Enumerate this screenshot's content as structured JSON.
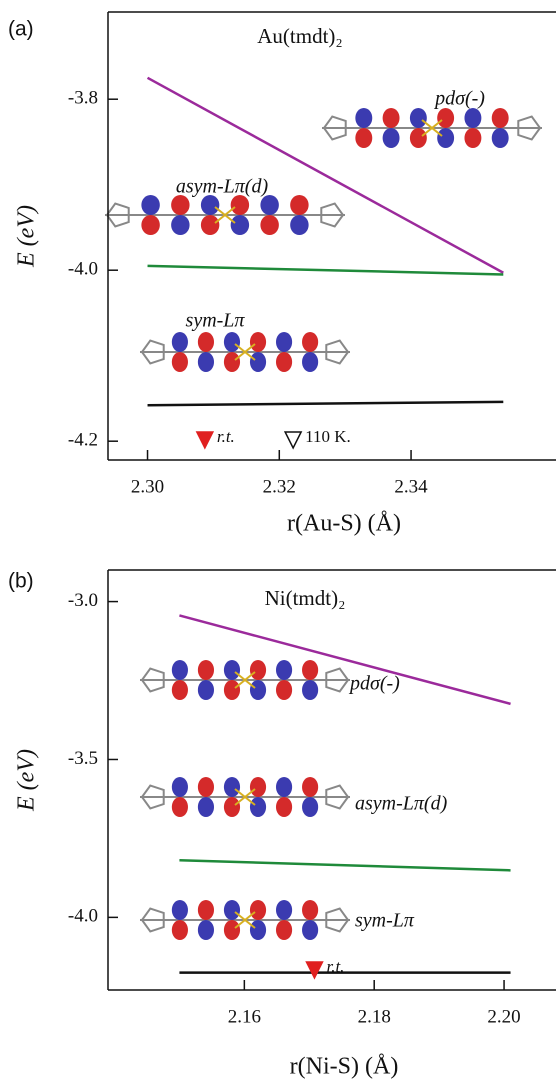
{
  "chart_data": [
    {
      "type": "line",
      "panel_label": "(a)",
      "title": "Au(tmdt)₂",
      "x_label": "r(Au-S) (Å)",
      "y_label": "E (eV)",
      "x": [
        2.3,
        2.354
      ],
      "series": [
        {
          "color": "#9b2a9b",
          "values": [
            -3.775,
            -4.003
          ]
        },
        {
          "color": "#1f8a3a",
          "values": [
            -3.995,
            -4.005
          ]
        },
        {
          "color": "#111111",
          "values": [
            -4.158,
            -4.154
          ]
        }
      ],
      "xlim": [
        2.294,
        2.362
      ],
      "ylim": [
        -4.222,
        -3.698
      ],
      "xticks": [
        {
          "value": 2.3,
          "label": "2.30"
        },
        2.32,
        2.34
      ],
      "yticks": [
        -3.8,
        {
          "value": -4.0,
          "label": "-4.0"
        },
        -4.2
      ],
      "markers": [
        {
          "x": 2.3087,
          "label": "r.t.",
          "color": "#e02020",
          "filled": true
        },
        {
          "x": 2.3221,
          "label": "110 K.",
          "color": "#111111",
          "filled": false
        }
      ],
      "annotations": [
        "pdσ(-)",
        "asym-Lπ(d)",
        "sym-Lπ"
      ]
    },
    {
      "type": "line",
      "panel_label": "(b)",
      "title": "Ni(tmdt)₂",
      "x_label": "r(Ni-S) (Å)",
      "y_label": "E (eV)",
      "x": [
        2.15,
        2.201
      ],
      "series": [
        {
          "color": "#9b2a9b",
          "values": [
            -3.044,
            -3.324
          ]
        },
        {
          "color": "#1f8a3a",
          "values": [
            -3.819,
            -3.851
          ]
        },
        {
          "color": "#111111",
          "values": [
            -4.175,
            -4.175
          ]
        }
      ],
      "xlim": [
        2.139,
        2.208
      ],
      "ylim": [
        -4.23,
        -2.9
      ],
      "xticks": [
        2.16,
        2.18,
        {
          "value": 2.2,
          "label": "2.20"
        }
      ],
      "yticks": [
        {
          "value": -3.0,
          "label": "-3.0"
        },
        -3.5,
        {
          "value": -4.0,
          "label": "-4.0"
        }
      ],
      "markers": [
        {
          "x": 2.1708,
          "label": "r.t.",
          "color": "#e02020",
          "filled": true
        }
      ],
      "annotations": [
        "pdσ(-)",
        "asym-Lπ(d)",
        "sym-Lπ"
      ]
    }
  ]
}
